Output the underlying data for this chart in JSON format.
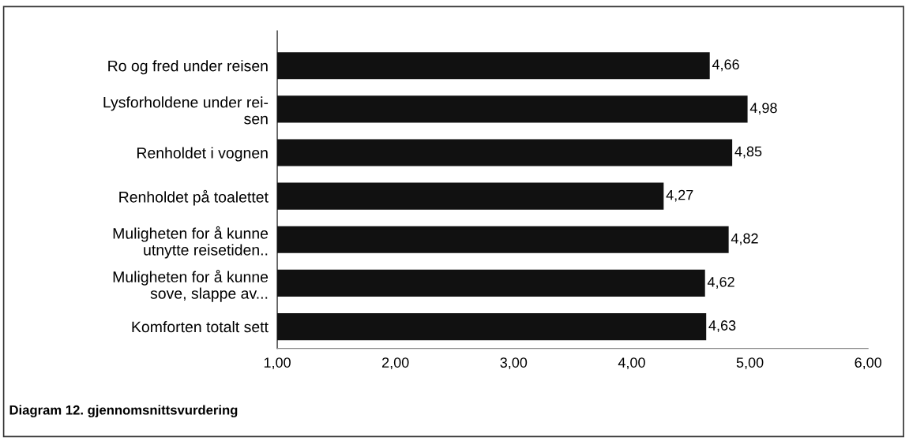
{
  "chart_data": {
    "type": "bar",
    "orientation": "horizontal",
    "title": "Diagram 12. gjennomsnittsvurdering",
    "categories": [
      "Ro og fred under reisen",
      "Lysforholdene under rei-\nsen",
      "Renholdet i vognen",
      "Renholdet på toalettet",
      "Muligheten for å kunne\nutnytte reisetiden..",
      "Muligheten for å kunne\nsove, slappe av...",
      "Komforten totalt sett"
    ],
    "values": [
      4.66,
      4.98,
      4.85,
      4.27,
      4.82,
      4.62,
      4.63
    ],
    "value_labels": [
      "4,66",
      "4,98",
      "4,85",
      "4,27",
      "4,82",
      "4,62",
      "4,63"
    ],
    "color": "#111111",
    "xlim": [
      1,
      6
    ],
    "xticks": [
      {
        "value": 1,
        "label": "1,00"
      },
      {
        "value": 2,
        "label": "2,00"
      },
      {
        "value": 3,
        "label": "3,00"
      },
      {
        "value": 4,
        "label": "4,00"
      },
      {
        "value": 5,
        "label": "5,00"
      },
      {
        "value": 6,
        "label": "6,00"
      }
    ],
    "grid": false
  }
}
